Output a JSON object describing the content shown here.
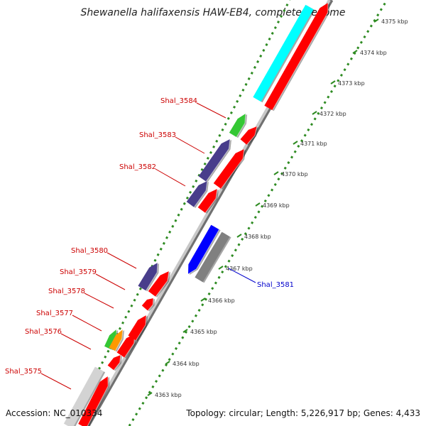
{
  "title": "Shewanella halifaxensis HAW-EB4, complete genome",
  "footer": {
    "accession": "Accession: NC_010334",
    "topology": "Topology: circular; Length: 5,226,917 bp; Genes: 4,433"
  },
  "colors": {
    "background": "#ffffff",
    "dotted_track": "#2e8b22",
    "backbone": "#a8a8a8",
    "forward_gene": "#ff0000",
    "hypothetical": "#483d8b",
    "rna": "#34c734",
    "pseudo_orange": "#ff9900",
    "cyan_gene": "#00ffff",
    "highlight_gene": "#0000ff",
    "grey_gene": "#808080",
    "light_grey_gene": "#d3d3d3",
    "label_red": "#cc0000",
    "label_blue": "#0000cc"
  },
  "kbp_ticks": [
    "4363 kbp",
    "4364 kbp",
    "4365 kbp",
    "4366 kbp",
    "4367 kbp",
    "4368 kbp",
    "4369 kbp",
    "4370 kbp",
    "4371 kbp",
    "4372 kbp",
    "4373 kbp",
    "4374 kbp",
    "4375 kbp"
  ],
  "gene_labels": [
    {
      "name": "Shal_3584",
      "color": "label_red"
    },
    {
      "name": "Shal_3583",
      "color": "label_red"
    },
    {
      "name": "Shal_3582",
      "color": "label_red"
    },
    {
      "name": "Shal_3580",
      "color": "label_red"
    },
    {
      "name": "Shal_3579",
      "color": "label_red"
    },
    {
      "name": "Shal_3578",
      "color": "label_red"
    },
    {
      "name": "Shal_3577",
      "color": "label_red"
    },
    {
      "name": "Shal_3576",
      "color": "label_red"
    },
    {
      "name": "Shal_3575",
      "color": "label_red"
    },
    {
      "name": "Shal_3581",
      "color": "label_blue"
    }
  ]
}
